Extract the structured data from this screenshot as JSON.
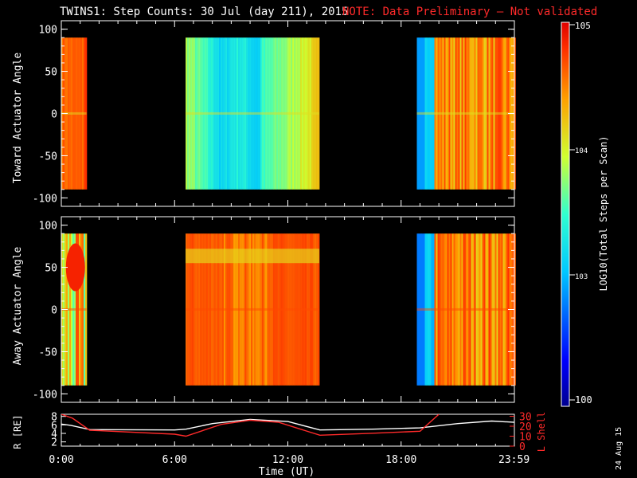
{
  "header": {
    "title": "TWINS1: Step Counts: 30 Jul (day 211), 2015",
    "note": "NOTE: Data Preliminary — Not validated",
    "note_color": "#ff2020"
  },
  "stamp": "24 Aug 15",
  "chart_data": [
    {
      "type": "heatmap",
      "panel": "toward",
      "ylabel": "Toward Actuator Angle",
      "ylim": [
        -110,
        110
      ],
      "yticks": [
        "100",
        "50",
        "0",
        "-50",
        "-100"
      ],
      "xlim_hours": [
        0,
        24
      ],
      "data_ylim": [
        -90,
        90
      ],
      "segments": [
        {
          "start": "00:00",
          "end": "01:20",
          "level": "orange-red",
          "value_approx": 50000
        },
        {
          "start": "06:35",
          "end": "13:40",
          "level": "cyan-to-yellow",
          "value_approx": 3000
        },
        {
          "start": "18:50",
          "end": "23:59",
          "level": "blue-to-red",
          "value_approx": 20000
        }
      ]
    },
    {
      "type": "heatmap",
      "panel": "away",
      "ylabel": "Away Actuator Angle",
      "ylim": [
        -110,
        110
      ],
      "yticks": [
        "100",
        "50",
        "0",
        "-50",
        "-100"
      ],
      "xlim_hours": [
        0,
        24
      ],
      "data_ylim": [
        -90,
        90
      ],
      "segments": [
        {
          "start": "00:00",
          "end": "01:20",
          "level": "mixed",
          "value_approx": 10000
        },
        {
          "start": "06:35",
          "end": "13:40",
          "level": "orange-red",
          "value_approx": 40000
        },
        {
          "start": "18:50",
          "end": "23:59",
          "level": "blue-to-red",
          "value_approx": 20000
        }
      ]
    },
    {
      "type": "line",
      "panel": "orbit",
      "ylabel_left": "R [RE]",
      "ylabel_right": "L Shell",
      "yticks_left": [
        "8",
        "6",
        "4",
        "2"
      ],
      "yticks_right": [
        "30",
        "20",
        "10",
        "0"
      ],
      "ylim_left": [
        1,
        8.5
      ],
      "ylim_right": [
        0,
        32
      ],
      "series": [
        {
          "axis": "left",
          "color": "#ffffff",
          "x": [
            0,
            0.5,
            1.5,
            6.0,
            6.6,
            8.0,
            10.0,
            12.0,
            13.7,
            16.5,
            19.0,
            21.0,
            22.8,
            24.0
          ],
          "y": [
            6.2,
            5.9,
            4.9,
            4.8,
            5.0,
            6.3,
            7.3,
            6.8,
            4.8,
            5.0,
            5.3,
            6.3,
            6.9,
            6.6
          ]
        },
        {
          "axis": "right",
          "color": "#ff2a2a",
          "x": [
            0,
            0.6,
            1.5,
            6.0,
            6.6,
            8.5,
            10.0,
            11.5,
            13.7,
            16.5,
            19.0,
            20.0
          ],
          "y": [
            32,
            28,
            16,
            12,
            10,
            22,
            26,
            24,
            11,
            13,
            15,
            32
          ]
        }
      ]
    }
  ],
  "xaxis": {
    "ticks": [
      "0:00",
      "6:00",
      "12:00",
      "18:00",
      "23:59"
    ],
    "label": "Time (UT)"
  },
  "colorbar": {
    "label": "LOG10(Total Steps per Scan)",
    "ticks": [
      "105",
      "104",
      "103",
      "100"
    ]
  }
}
